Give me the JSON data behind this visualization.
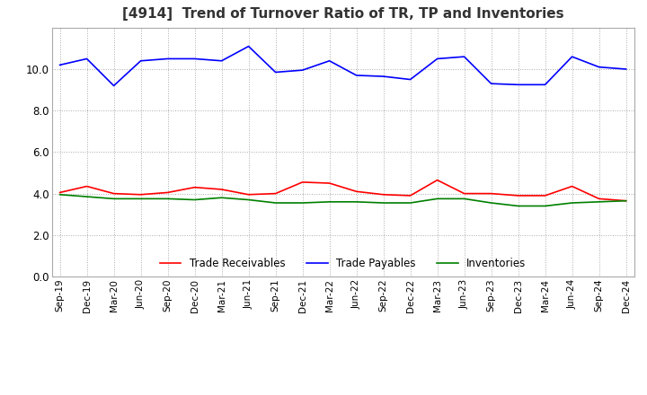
{
  "title": "[4914]  Trend of Turnover Ratio of TR, TP and Inventories",
  "xlabels": [
    "Sep-19",
    "Dec-19",
    "Mar-20",
    "Jun-20",
    "Sep-20",
    "Dec-20",
    "Mar-21",
    "Jun-21",
    "Sep-21",
    "Dec-21",
    "Mar-22",
    "Jun-22",
    "Sep-22",
    "Dec-22",
    "Mar-23",
    "Jun-23",
    "Sep-23",
    "Dec-23",
    "Mar-24",
    "Jun-24",
    "Sep-24",
    "Dec-24"
  ],
  "trade_receivables": [
    4.05,
    4.35,
    4.0,
    3.95,
    4.05,
    4.3,
    4.2,
    3.95,
    4.0,
    4.55,
    4.5,
    4.1,
    3.95,
    3.9,
    4.65,
    4.0,
    4.0,
    3.9,
    3.9,
    4.35,
    3.75,
    3.65
  ],
  "trade_payables": [
    10.2,
    10.5,
    9.2,
    10.4,
    10.5,
    10.5,
    10.4,
    11.1,
    9.85,
    9.95,
    10.4,
    9.7,
    9.65,
    9.5,
    10.5,
    10.6,
    9.3,
    9.25,
    9.25,
    10.6,
    10.1,
    10.0
  ],
  "inventories": [
    3.95,
    3.85,
    3.75,
    3.75,
    3.75,
    3.7,
    3.8,
    3.7,
    3.55,
    3.55,
    3.6,
    3.6,
    3.55,
    3.55,
    3.75,
    3.75,
    3.55,
    3.4,
    3.4,
    3.55,
    3.6,
    3.65
  ],
  "ylim": [
    0.0,
    12.0
  ],
  "yticks": [
    0.0,
    2.0,
    4.0,
    6.0,
    8.0,
    10.0
  ],
  "tr_color": "#ff0000",
  "tp_color": "#0000ff",
  "inv_color": "#008000",
  "legend_labels": [
    "Trade Receivables",
    "Trade Payables",
    "Inventories"
  ],
  "background_color": "#ffffff",
  "grid_color": "#aaaaaa"
}
